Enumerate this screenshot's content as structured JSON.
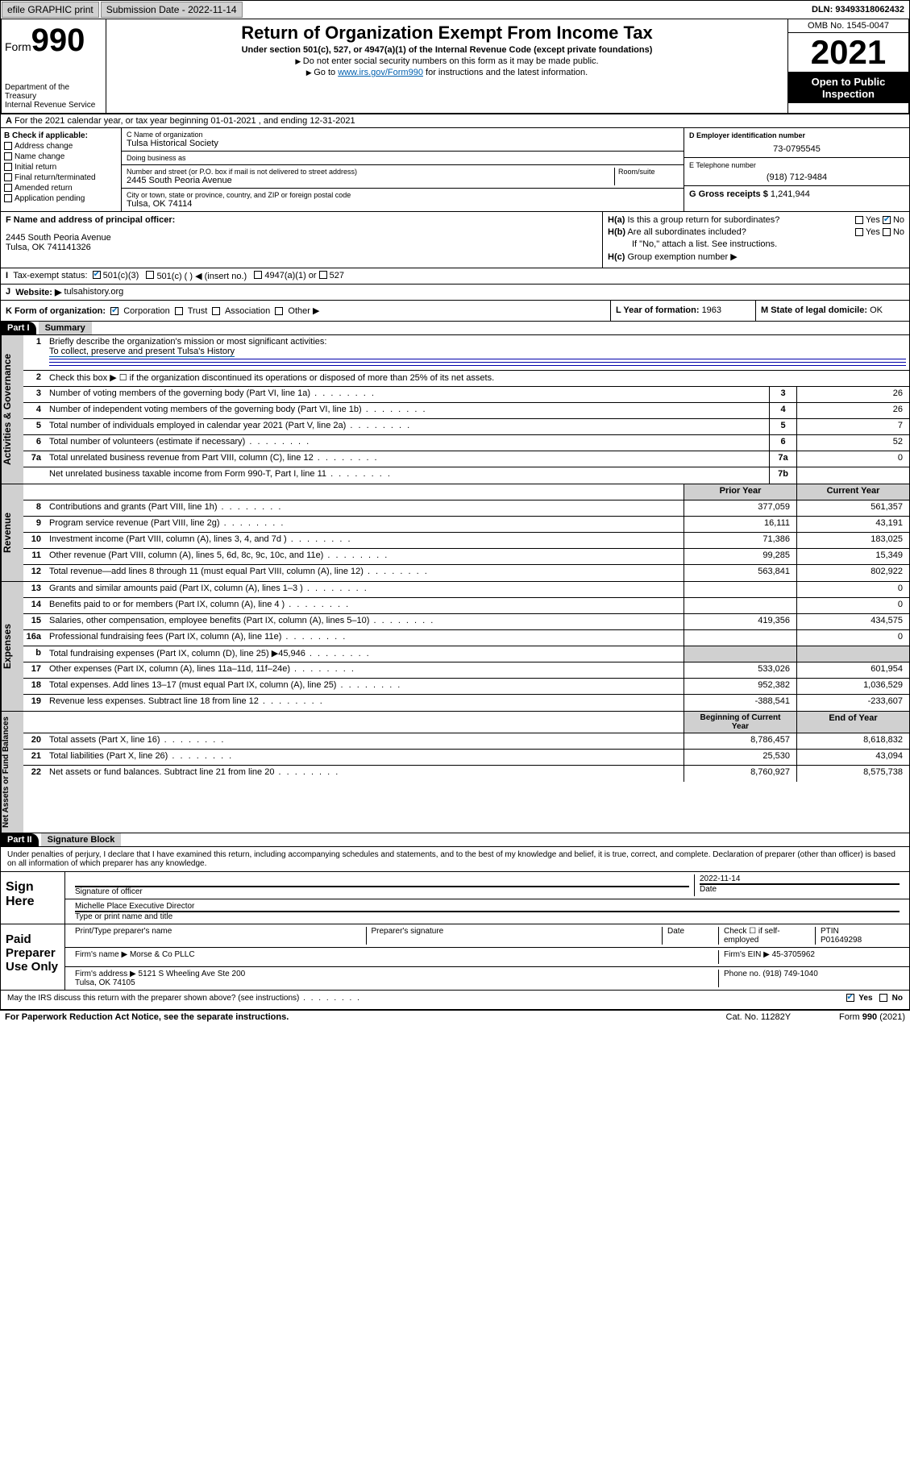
{
  "topbar": {
    "efile": "efile GRAPHIC print",
    "sub_label": "Submission Date - ",
    "sub_date": "2022-11-14",
    "dln_label": "DLN: ",
    "dln": "93493318062432"
  },
  "header": {
    "form_word": "Form",
    "form_num": "990",
    "title": "Return of Organization Exempt From Income Tax",
    "subtitle": "Under section 501(c), 527, or 4947(a)(1) of the Internal Revenue Code (except private foundations)",
    "note1": "Do not enter social security numbers on this form as it may be made public.",
    "note2_pre": "Go to ",
    "note2_link": "www.irs.gov/Form990",
    "note2_post": " for instructions and the latest information.",
    "dept": "Department of the Treasury\nInternal Revenue Service",
    "omb": "OMB No. 1545-0047",
    "year": "2021",
    "opi": "Open to Public Inspection"
  },
  "row_a": "For the 2021 calendar year, or tax year beginning 01-01-2021   , and ending 12-31-2021",
  "block_b": {
    "label": "B Check if applicable:",
    "items": [
      "Address change",
      "Name change",
      "Initial return",
      "Final return/terminated",
      "Amended return",
      "Application pending"
    ]
  },
  "block_c": {
    "name_label": "C Name of organization",
    "name": "Tulsa Historical Society",
    "dba_label": "Doing business as",
    "dba": "",
    "street_label": "Number and street (or P.O. box if mail is not delivered to street address)",
    "room_label": "Room/suite",
    "street": "2445 South Peoria Avenue",
    "city_label": "City or town, state or province, country, and ZIP or foreign postal code",
    "city": "Tulsa, OK  74114"
  },
  "block_d": {
    "ein_label": "D Employer identification number",
    "ein": "73-0795545",
    "phone_label": "E Telephone number",
    "phone": "(918) 712-9484",
    "gross_label": "G Gross receipts $ ",
    "gross": "1,241,944"
  },
  "block_f": {
    "label": "F  Name and address of principal officer:",
    "addr1": "2445 South Peoria Avenue",
    "addr2": "Tulsa, OK  741141326"
  },
  "block_h": {
    "ha": "Is this a group return for subordinates?",
    "hb": "Are all subordinates included?",
    "hb_note": "If \"No,\" attach a list. See instructions.",
    "hc": "Group exemption number ▶",
    "yes": "Yes",
    "no": "No"
  },
  "row_i": {
    "label": "Tax-exempt status:",
    "opts": [
      "501(c)(3)",
      "501(c) (  ) ◀ (insert no.)",
      "4947(a)(1) or",
      "527"
    ]
  },
  "row_j": {
    "label": "Website: ▶",
    "val": "tulsahistory.org"
  },
  "row_k": {
    "label": "K Form of organization:",
    "opts": [
      "Corporation",
      "Trust",
      "Association",
      "Other ▶"
    ]
  },
  "row_l": {
    "label": "L Year of formation: ",
    "val": "1963"
  },
  "row_m": {
    "label": "M State of legal domicile: ",
    "val": "OK"
  },
  "part1": {
    "tag": "Part I",
    "title": "Summary"
  },
  "summary": {
    "gov": {
      "tab": "Activities & Governance",
      "line1_label": "Briefly describe the organization's mission or most significant activities:",
      "line1_val": "To collect, preserve and present Tulsa's History",
      "line2": "Check this box ▶ ☐  if the organization discontinued its operations or disposed of more than 25% of its net assets.",
      "rows": [
        {
          "n": "3",
          "d": "Number of voting members of the governing body (Part VI, line 1a)",
          "b": "3",
          "v": "26"
        },
        {
          "n": "4",
          "d": "Number of independent voting members of the governing body (Part VI, line 1b)",
          "b": "4",
          "v": "26"
        },
        {
          "n": "5",
          "d": "Total number of individuals employed in calendar year 2021 (Part V, line 2a)",
          "b": "5",
          "v": "7"
        },
        {
          "n": "6",
          "d": "Total number of volunteers (estimate if necessary)",
          "b": "6",
          "v": "52"
        },
        {
          "n": "7a",
          "d": "Total unrelated business revenue from Part VIII, column (C), line 12",
          "b": "7a",
          "v": "0"
        },
        {
          "n": "",
          "d": "Net unrelated business taxable income from Form 990-T, Part I, line 11",
          "b": "7b",
          "v": ""
        }
      ]
    },
    "rev": {
      "tab": "Revenue",
      "header_prior": "Prior Year",
      "header_curr": "Current Year",
      "rows": [
        {
          "n": "8",
          "d": "Contributions and grants (Part VIII, line 1h)",
          "p": "377,059",
          "c": "561,357"
        },
        {
          "n": "9",
          "d": "Program service revenue (Part VIII, line 2g)",
          "p": "16,111",
          "c": "43,191"
        },
        {
          "n": "10",
          "d": "Investment income (Part VIII, column (A), lines 3, 4, and 7d )",
          "p": "71,386",
          "c": "183,025"
        },
        {
          "n": "11",
          "d": "Other revenue (Part VIII, column (A), lines 5, 6d, 8c, 9c, 10c, and 11e)",
          "p": "99,285",
          "c": "15,349"
        },
        {
          "n": "12",
          "d": "Total revenue—add lines 8 through 11 (must equal Part VIII, column (A), line 12)",
          "p": "563,841",
          "c": "802,922"
        }
      ]
    },
    "exp": {
      "tab": "Expenses",
      "rows": [
        {
          "n": "13",
          "d": "Grants and similar amounts paid (Part IX, column (A), lines 1–3 )",
          "p": "",
          "c": "0"
        },
        {
          "n": "14",
          "d": "Benefits paid to or for members (Part IX, column (A), line 4 )",
          "p": "",
          "c": "0"
        },
        {
          "n": "15",
          "d": "Salaries, other compensation, employee benefits (Part IX, column (A), lines 5–10)",
          "p": "419,356",
          "c": "434,575"
        },
        {
          "n": "16a",
          "d": "Professional fundraising fees (Part IX, column (A), line 11e)",
          "p": "",
          "c": "0"
        },
        {
          "n": "b",
          "d": "Total fundraising expenses (Part IX, column (D), line 25) ▶45,946",
          "p": "gray",
          "c": "gray"
        },
        {
          "n": "17",
          "d": "Other expenses (Part IX, column (A), lines 11a–11d, 11f–24e)",
          "p": "533,026",
          "c": "601,954"
        },
        {
          "n": "18",
          "d": "Total expenses. Add lines 13–17 (must equal Part IX, column (A), line 25)",
          "p": "952,382",
          "c": "1,036,529"
        },
        {
          "n": "19",
          "d": "Revenue less expenses. Subtract line 18 from line 12",
          "p": "-388,541",
          "c": "-233,607"
        }
      ]
    },
    "net": {
      "tab": "Net Assets or Fund Balances",
      "header_beg": "Beginning of Current Year",
      "header_end": "End of Year",
      "rows": [
        {
          "n": "20",
          "d": "Total assets (Part X, line 16)",
          "p": "8,786,457",
          "c": "8,618,832"
        },
        {
          "n": "21",
          "d": "Total liabilities (Part X, line 26)",
          "p": "25,530",
          "c": "43,094"
        },
        {
          "n": "22",
          "d": "Net assets or fund balances. Subtract line 21 from line 20",
          "p": "8,760,927",
          "c": "8,575,738"
        }
      ]
    }
  },
  "part2": {
    "tag": "Part II",
    "title": "Signature Block"
  },
  "sig": {
    "decl": "Under penalties of perjury, I declare that I have examined this return, including accompanying schedules and statements, and to the best of my knowledge and belief, it is true, correct, and complete. Declaration of preparer (other than officer) is based on all information of which preparer has any knowledge.",
    "sign_here": "Sign Here",
    "sig_officer": "Signature of officer",
    "date_label": "Date",
    "date": "2022-11-14",
    "name_title": "Michelle Place  Executive Director",
    "name_title_label": "Type or print name and title",
    "paid": "Paid Preparer Use Only",
    "prep_name_label": "Print/Type preparer's name",
    "prep_sig_label": "Preparer's signature",
    "check_if": "Check ☐ if self-employed",
    "ptin_label": "PTIN",
    "ptin": "P01649298",
    "firm_name_label": "Firm's name   ▶ ",
    "firm_name": "Morse & Co PLLC",
    "firm_ein_label": "Firm's EIN ▶ ",
    "firm_ein": "45-3705962",
    "firm_addr_label": "Firm's address ▶ ",
    "firm_addr": "5121 S Wheeling Ave Ste 200\nTulsa, OK  74105",
    "phone_label": "Phone no. ",
    "phone": "(918) 749-1040",
    "discuss": "May the IRS discuss this return with the preparer shown above? (see instructions)"
  },
  "footer": {
    "left": "For Paperwork Reduction Act Notice, see the separate instructions.",
    "mid": "Cat. No. 11282Y",
    "right": "Form 990 (2021)"
  }
}
